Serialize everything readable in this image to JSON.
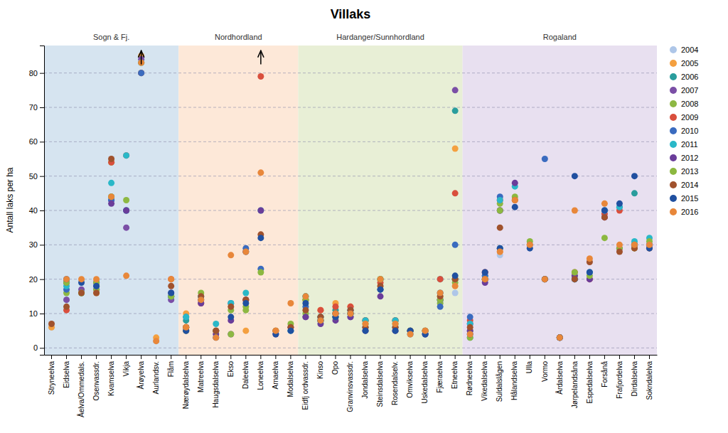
{
  "chart_data": {
    "type": "scatter",
    "title": "Villaks",
    "ylabel": "Antall laks per ha",
    "ylim": [
      -2,
      88
    ],
    "yticks": [
      0,
      10,
      20,
      30,
      40,
      50,
      60,
      70,
      80
    ],
    "grid": true,
    "legend": "right",
    "categories": [
      "Stryneelva",
      "Eidselva",
      "Åelva/Ommedals.",
      "Osenvassdr.",
      "Kvamselva",
      "Vikja",
      "Årøyelva",
      "Aurlandsv.",
      "Flåm",
      "Nærøydalselva",
      "Matreelva",
      "Haugsdalselva",
      "Ekso",
      "Daleelva",
      "Loneelva",
      "Arnaelva",
      "Modalselva",
      "Eidfj ordvassdr.",
      "Kinso",
      "Opo",
      "Granvinsvassdr.",
      "Jondalselva",
      "Steinsdalselva",
      "Rosendalselv.",
      "Omvikselva",
      "Uskedalselva",
      "Fjæraelva",
      "Etneelva",
      "Rødneelva",
      "Vikedalselva",
      "Suldalslågen",
      "Hålandselva",
      "Ulla",
      "Vormo",
      "Årdalselva",
      "Jørpelandsåna",
      "Espedalselva",
      "Forsånå",
      "Frafjordelva",
      "Dirdalselva",
      "Sokndalelva"
    ],
    "regions": [
      {
        "name": "Sogn & Fj.",
        "color": "#d6e4f0",
        "from": "Stryneelva",
        "to": "Flåm"
      },
      {
        "name": "Nordhordland",
        "color": "#fde8d8",
        "from": "Nærøydalselva",
        "to": "Modalselva"
      },
      {
        "name": "Hardanger/Sunnhordland",
        "color": "#e8efd6",
        "from": "Eidfj ordvassdr.",
        "to": "Etneelva"
      },
      {
        "name": "Rogaland",
        "color": "#e8e0f0",
        "from": "Rødneelva",
        "to": "Sokndalelva"
      }
    ],
    "arrows": [
      {
        "category": "Årøyelva",
        "from": 82.5,
        "to": 86.5
      },
      {
        "category": "Loneelva",
        "from": 82.5,
        "to": 86.5
      }
    ],
    "series": [
      {
        "name": "2004",
        "color": "#aec6e8",
        "values": [
          6,
          14,
          null,
          null,
          null,
          null,
          83,
          2,
          14,
          null,
          null,
          null,
          null,
          null,
          null,
          null,
          null,
          10,
          8,
          10,
          10,
          null,
          null,
          null,
          null,
          null,
          13,
          16,
          null,
          20,
          27,
          null,
          null,
          null,
          null,
          null,
          null,
          null,
          null,
          null,
          null
        ]
      },
      {
        "name": "2005",
        "color": "#f4a040",
        "values": [
          6,
          19,
          null,
          16,
          null,
          null,
          85,
          3,
          15,
          10,
          null,
          null,
          null,
          5,
          null,
          null,
          null,
          14,
          11,
          13,
          12,
          null,
          null,
          null,
          null,
          null,
          15,
          58,
          null,
          20,
          28,
          null,
          null,
          null,
          null,
          null,
          null,
          null,
          null,
          null,
          null
        ]
      },
      {
        "name": "2006",
        "color": "#2a9d9d",
        "values": [
          null,
          null,
          16,
          null,
          44,
          40,
          80,
          null,
          15,
          8,
          null,
          null,
          null,
          28,
          null,
          null,
          null,
          15,
          9,
          11,
          11,
          null,
          null,
          null,
          null,
          null,
          20,
          69,
          3,
          21,
          29,
          null,
          null,
          null,
          null,
          20,
          null,
          null,
          null,
          45,
          null
        ]
      },
      {
        "name": "2007",
        "color": "#7b4fa6",
        "values": [
          null,
          14,
          17,
          17,
          43,
          35,
          84,
          null,
          14,
          5,
          null,
          null,
          4,
          28,
          null,
          null,
          null,
          9,
          8,
          9,
          9,
          8,
          20,
          8,
          null,
          null,
          14,
          75,
          7,
          22,
          40,
          null,
          null,
          null,
          3,
          20,
          null,
          null,
          null,
          30,
          null
        ]
      },
      {
        "name": "2008",
        "color": "#8db843",
        "values": [
          null,
          16,
          16,
          17,
          54,
          43,
          83,
          null,
          15,
          5,
          null,
          null,
          4,
          11,
          null,
          null,
          null,
          10,
          9,
          10,
          10,
          8,
          20,
          8,
          null,
          null,
          13,
          19,
          5,
          20,
          42,
          null,
          null,
          null,
          3,
          21,
          null,
          null,
          null,
          29,
          null
        ]
      },
      {
        "name": "2009",
        "color": "#d94f3d",
        "values": [
          null,
          11,
          null,
          null,
          54,
          56,
          80,
          null,
          20,
          6,
          13,
          5,
          null,
          14,
          79,
          null,
          null,
          14,
          11,
          12,
          12,
          8,
          19,
          8,
          null,
          null,
          20,
          45,
          8,
          22,
          43,
          null,
          null,
          null,
          3,
          22,
          20,
          39,
          40,
          30,
          null
        ]
      },
      {
        "name": "2010",
        "color": "#3a6bbf",
        "values": [
          null,
          17,
          null,
          18,
          43,
          40,
          80,
          null,
          15,
          9,
          15,
          5,
          13,
          29,
          23,
          null,
          null,
          12,
          9,
          10,
          11,
          6,
          17,
          6,
          4,
          4,
          12,
          30,
          9,
          21,
          44,
          null,
          null,
          55,
          3,
          20,
          22,
          40,
          41,
          30,
          30
        ]
      },
      {
        "name": "2011",
        "color": "#2ab8c8",
        "values": [
          null,
          18,
          null,
          null,
          48,
          56,
          83,
          null,
          15,
          9,
          15,
          7,
          13,
          16,
          40,
          null,
          5,
          15,
          8,
          9,
          10,
          8,
          20,
          8,
          5,
          5,
          14,
          20,
          7,
          20,
          43,
          47,
          null,
          20,
          3,
          20,
          22,
          40,
          41,
          31,
          32
        ]
      },
      {
        "name": "2012",
        "color": "#6a3d9a",
        "values": [
          null,
          19,
          null,
          19,
          42,
          40,
          null,
          null,
          16,
          6,
          13,
          4,
          8,
          14,
          40,
          4,
          6,
          9,
          7,
          8,
          9,
          5,
          15,
          5,
          5,
          4,
          14,
          20,
          5,
          19,
          40,
          48,
          null,
          20,
          3,
          21,
          20,
          38,
          29,
          30,
          30
        ]
      },
      {
        "name": "2013",
        "color": "#8cb840",
        "values": [
          null,
          19,
          16,
          19,
          44,
          null,
          null,
          null,
          15,
          6,
          16,
          5,
          11,
          12,
          22,
          5,
          7,
          14,
          8,
          9,
          10,
          7,
          20,
          7,
          5,
          5,
          14,
          20,
          3,
          20,
          40,
          44,
          31,
          20,
          3,
          22,
          21,
          32,
          29,
          30,
          31
        ]
      },
      {
        "name": "2014",
        "color": "#a0522d",
        "values": [
          7,
          12,
          16,
          16,
          55,
          null,
          null,
          null,
          18,
          6,
          15,
          5,
          12,
          14,
          33,
          5,
          6,
          11,
          9,
          10,
          11,
          6,
          18,
          6,
          5,
          5,
          15,
          20,
          6,
          20,
          35,
          43,
          30,
          20,
          3,
          20,
          25,
          38,
          28,
          29,
          29
        ]
      },
      {
        "name": "2015",
        "color": "#2050a0",
        "values": [
          null,
          20,
          19,
          18,
          null,
          null,
          null,
          null,
          16,
          5,
          14,
          3,
          9,
          13,
          32,
          4,
          5,
          13,
          8,
          9,
          10,
          5,
          17,
          5,
          5,
          4,
          16,
          21,
          4,
          22,
          29,
          41,
          29,
          20,
          3,
          50,
          22,
          40,
          42,
          50,
          29
        ]
      },
      {
        "name": "2016",
        "color": "#e8873a",
        "values": [
          null,
          20,
          20,
          20,
          44,
          21,
          83,
          2,
          20,
          6,
          14,
          3,
          27,
          28,
          51,
          5,
          13,
          15,
          8,
          10,
          10,
          7,
          20,
          7,
          4,
          5,
          16,
          18,
          4,
          20,
          28,
          43,
          30,
          20,
          3,
          40,
          26,
          42,
          30,
          30,
          30
        ]
      }
    ]
  }
}
